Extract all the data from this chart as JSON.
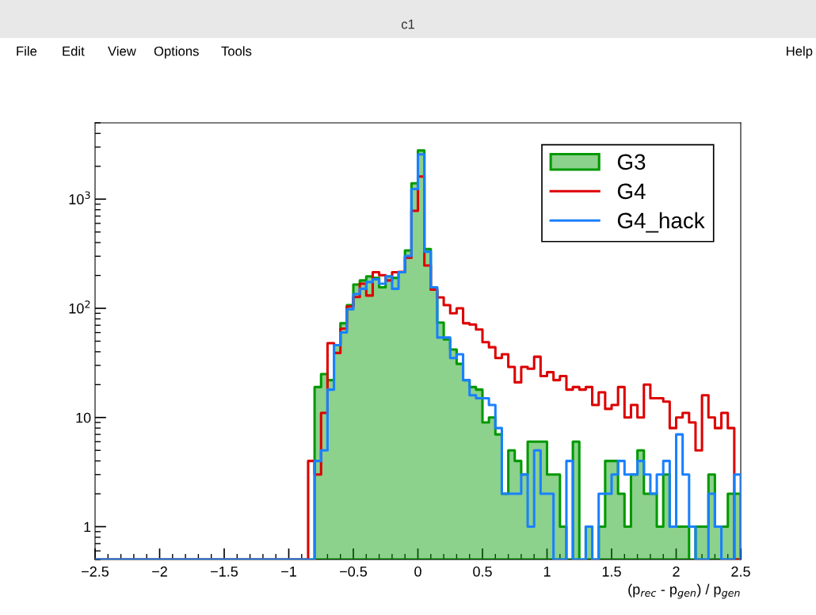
{
  "chart_data": {
    "type": "histogram",
    "title": "c1",
    "annotations": [
      "File",
      "Edit",
      "View",
      "Options",
      "Tools",
      "Help"
    ],
    "xlabel": "(p$_{rec}$ - p$_{gen}$) / p$_{gen}$",
    "bins": [
      -2.5,
      -2.45,
      -2.4,
      -2.35,
      -2.3,
      -2.25,
      -2.2,
      -2.15,
      -2.1,
      -2.05,
      -2.0,
      -1.95,
      -1.9,
      -1.85,
      -1.8,
      -1.75,
      -1.7,
      -1.65,
      -1.6,
      -1.55,
      -1.5,
      -1.45,
      -1.4,
      -1.35,
      -1.3,
      -1.25,
      -1.2,
      -1.15,
      -1.1,
      -1.05,
      -1.0,
      -0.95,
      -0.9,
      -0.85,
      -0.8,
      -0.75,
      -0.7,
      -0.65,
      -0.6,
      -0.55,
      -0.5,
      -0.45,
      -0.4,
      -0.35,
      -0.3,
      -0.25,
      -0.2,
      -0.15,
      -0.1,
      -0.05,
      0.0,
      0.05,
      0.1,
      0.15,
      0.2,
      0.25,
      0.3,
      0.35,
      0.4,
      0.45,
      0.5,
      0.55,
      0.6,
      0.65,
      0.7,
      0.75,
      0.8,
      0.85,
      0.9,
      0.95,
      1.0,
      1.05,
      1.1,
      1.15,
      1.2,
      1.25,
      1.3,
      1.35,
      1.4,
      1.45,
      1.5,
      1.55,
      1.6,
      1.65,
      1.7,
      1.75,
      1.8,
      1.85,
      1.9,
      1.95,
      2.0,
      2.05,
      2.1,
      2.15,
      2.2,
      2.25,
      2.3,
      2.35,
      2.4,
      2.45,
      2.5
    ],
    "series": [
      {
        "name": "G3",
        "type": "histogram",
        "color": "#009900",
        "values": [
          null,
          null,
          null,
          null,
          null,
          null,
          null,
          null,
          null,
          null,
          null,
          null,
          null,
          null,
          null,
          null,
          null,
          null,
          null,
          null,
          null,
          null,
          null,
          null,
          null,
          null,
          null,
          null,
          null,
          null,
          null,
          null,
          null,
          null,
          19,
          25,
          22,
          46,
          73,
          107,
          165,
          180,
          196,
          190,
          156,
          196,
          190,
          214,
          339,
          1400,
          2790,
          349,
          148,
          74,
          52,
          42,
          31,
          22,
          19,
          18,
          9,
          10,
          7,
          2,
          5,
          4,
          3,
          6,
          6,
          6,
          3,
          3,
          1,
          null,
          6,
          null,
          1,
          null,
          1,
          4,
          4,
          2,
          1,
          3,
          5,
          2,
          2,
          1,
          3,
          1,
          1,
          1,
          null,
          1,
          1,
          3,
          1,
          1,
          2,
          2
        ]
      },
      {
        "name": "G4",
        "type": "histogram",
        "color": "#dd0000",
        "values": [
          null,
          null,
          null,
          null,
          null,
          null,
          null,
          null,
          null,
          null,
          null,
          null,
          null,
          null,
          null,
          null,
          null,
          null,
          null,
          null,
          null,
          null,
          null,
          null,
          null,
          null,
          null,
          null,
          null,
          null,
          null,
          null,
          null,
          4,
          3,
          11,
          48,
          39,
          65,
          104,
          127,
          168,
          131,
          214,
          201,
          180,
          214,
          216,
          290,
          783,
          1610,
          247,
          148,
          126,
          107,
          90,
          100,
          73,
          71,
          64,
          49,
          44,
          35,
          38,
          29,
          21,
          29,
          28,
          36,
          24,
          26,
          22,
          24,
          18,
          19,
          18,
          19,
          13,
          17,
          12,
          13,
          19,
          10,
          13,
          10,
          20,
          15,
          15,
          14,
          8,
          10,
          11,
          9,
          5,
          16,
          10,
          8,
          11,
          8,
          null
        ]
      },
      {
        "name": "G4_hack",
        "type": "histogram",
        "color": "#1a80ff",
        "values": [
          null,
          null,
          null,
          null,
          null,
          null,
          null,
          null,
          null,
          null,
          null,
          null,
          null,
          null,
          null,
          null,
          null,
          null,
          null,
          null,
          null,
          null,
          null,
          null,
          null,
          null,
          null,
          null,
          null,
          null,
          null,
          null,
          null,
          null,
          4,
          5,
          18,
          46,
          60,
          98,
          135,
          151,
          174,
          184,
          168,
          196,
          151,
          214,
          302,
          1240,
          2570,
          330,
          156,
          54,
          54,
          35,
          38,
          22,
          16,
          15,
          15,
          13,
          8,
          2,
          2,
          2,
          3,
          1,
          5,
          2,
          2,
          null,
          null,
          4,
          null,
          null,
          1,
          null,
          2,
          2,
          3,
          4,
          3,
          3,
          4,
          3,
          2,
          3,
          4,
          1,
          7,
          3,
          1,
          null,
          null,
          2,
          1,
          null,
          null,
          3
        ]
      }
    ],
    "xlim": [
      -2.5,
      2.5
    ],
    "xticks": [
      {
        "value": -2.5,
        "label": "−2.5"
      },
      {
        "value": -2,
        "label": "−2"
      },
      {
        "value": -1.5,
        "label": "−1.5"
      },
      {
        "value": -1,
        "label": "−1"
      },
      {
        "value": -0.5,
        "label": "−0.5"
      },
      0,
      0.5,
      1,
      1.5,
      2,
      2.5
    ],
    "ylim": [
      0.5,
      5000
    ],
    "log": true,
    "yticks": [
      1,
      10,
      {
        "value": 100,
        "label": "10$^{2}$"
      },
      {
        "value": 1000,
        "label": "10$^{3}$"
      }
    ],
    "legend": "top right",
    "grid": false
  }
}
